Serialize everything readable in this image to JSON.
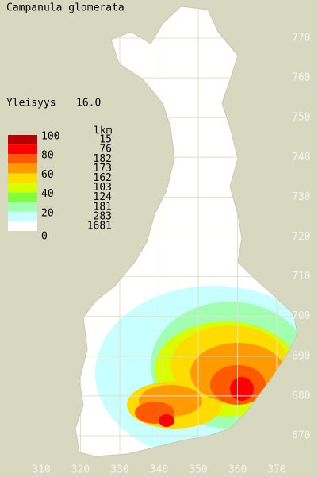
{
  "title": "Campanula glomerata",
  "frequency": {
    "label": "Yleisyys",
    "value": "16.0"
  },
  "legend": {
    "header": "lkm",
    "scale_labels": [
      100,
      80,
      60,
      40,
      20,
      0
    ],
    "classes": [
      {
        "color": "#b80000",
        "count": 15
      },
      {
        "color": "#ff0000",
        "count": 76
      },
      {
        "color": "#ff5a00",
        "count": 182
      },
      {
        "color": "#ff9a00",
        "count": 173
      },
      {
        "color": "#ffdc00",
        "count": 162
      },
      {
        "color": "#d8ff00",
        "count": 103
      },
      {
        "color": "#80ff40",
        "count": 124
      },
      {
        "color": "#a0ffb0",
        "count": 181
      },
      {
        "color": "#c8ffff",
        "count": 283
      },
      {
        "color": "#ffffff",
        "count": 1681
      }
    ]
  },
  "y_labels": [
    770,
    760,
    750,
    740,
    730,
    720,
    710,
    700,
    690,
    680,
    670
  ],
  "x_labels": [
    310,
    320,
    330,
    340,
    350,
    360,
    370
  ]
}
